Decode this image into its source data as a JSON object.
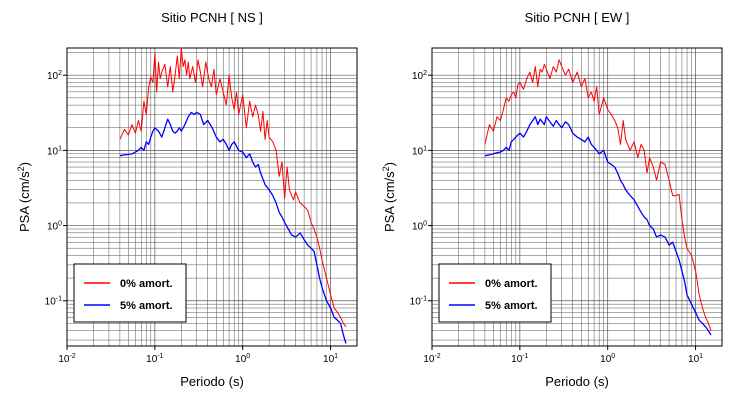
{
  "colors": {
    "zero_damping": "#ff0000",
    "five_damping": "#0000ff",
    "grid": "#555555"
  },
  "chart_data": [
    {
      "type": "line",
      "title": "Sitio PCNH [ NS ]",
      "xlabel": "Periodo (s)",
      "ylabel_main": "PSA (cm/s",
      "ylabel_sup": "2",
      "ylabel_tail": ")",
      "x_scale": "log",
      "y_scale": "log",
      "xlim": [
        0.01,
        20
      ],
      "ylim": [
        0.025,
        230
      ],
      "grid": true,
      "legend_position": "bottom-left",
      "x_ticks": [
        {
          "base": "10",
          "exp": "-2",
          "value": 0.01
        },
        {
          "base": "10",
          "exp": "-1",
          "value": 0.1
        },
        {
          "base": "10",
          "exp": "0",
          "value": 1
        },
        {
          "base": "10",
          "exp": "1",
          "value": 10
        }
      ],
      "y_ticks": [
        {
          "base": "10",
          "exp": "-1",
          "value": 0.1
        },
        {
          "base": "10",
          "exp": "0",
          "value": 1
        },
        {
          "base": "10",
          "exp": "1",
          "value": 10
        },
        {
          "base": "10",
          "exp": "2",
          "value": 100
        }
      ],
      "series": [
        {
          "name": "0% amort.",
          "color": "#ff0000",
          "x": [
            0.04,
            0.045,
            0.05,
            0.055,
            0.06,
            0.065,
            0.07,
            0.075,
            0.08,
            0.085,
            0.09,
            0.095,
            0.1,
            0.105,
            0.11,
            0.115,
            0.12,
            0.13,
            0.14,
            0.15,
            0.16,
            0.17,
            0.18,
            0.19,
            0.2,
            0.21,
            0.22,
            0.23,
            0.24,
            0.25,
            0.27,
            0.29,
            0.31,
            0.33,
            0.35,
            0.38,
            0.41,
            0.44,
            0.47,
            0.5,
            0.55,
            0.6,
            0.65,
            0.7,
            0.75,
            0.8,
            0.85,
            0.9,
            1.0,
            1.1,
            1.2,
            1.3,
            1.4,
            1.5,
            1.6,
            1.7,
            1.8,
            1.9,
            2.0,
            2.2,
            2.4,
            2.6,
            2.8,
            3.0,
            3.2,
            3.4,
            3.6,
            3.8,
            4.0,
            4.5,
            5.0,
            5.5,
            6.0,
            6.5,
            7.0,
            7.5,
            8.0,
            9.0,
            10.0,
            11.0,
            12.0,
            13.0,
            14.0,
            15.0
          ],
          "values": [
            14,
            19,
            16,
            22,
            17,
            25,
            18,
            45,
            30,
            70,
            95,
            80,
            200,
            60,
            150,
            90,
            110,
            140,
            70,
            130,
            60,
            100,
            180,
            90,
            230,
            130,
            160,
            100,
            150,
            90,
            130,
            80,
            160,
            110,
            70,
            150,
            90,
            70,
            120,
            55,
            90,
            60,
            40,
            100,
            50,
            35,
            60,
            30,
            55,
            20,
            45,
            28,
            40,
            30,
            18,
            33,
            14,
            25,
            15,
            13,
            10,
            4.5,
            7,
            2.3,
            6,
            3,
            2.5,
            2.2,
            2.8,
            2.0,
            1.8,
            1.6,
            1.1,
            0.9,
            0.7,
            0.5,
            0.35,
            0.2,
            0.12,
            0.08,
            0.07,
            0.06,
            0.05,
            0.045
          ]
        },
        {
          "name": "5% amort.",
          "color": "#0000ff",
          "x": [
            0.04,
            0.045,
            0.05,
            0.055,
            0.06,
            0.065,
            0.07,
            0.075,
            0.08,
            0.085,
            0.09,
            0.095,
            0.1,
            0.11,
            0.12,
            0.13,
            0.14,
            0.15,
            0.16,
            0.17,
            0.18,
            0.19,
            0.2,
            0.22,
            0.24,
            0.26,
            0.28,
            0.3,
            0.33,
            0.36,
            0.4,
            0.45,
            0.5,
            0.55,
            0.6,
            0.65,
            0.7,
            0.75,
            0.8,
            0.9,
            1.0,
            1.1,
            1.2,
            1.3,
            1.4,
            1.5,
            1.6,
            1.8,
            2.0,
            2.2,
            2.4,
            2.6,
            2.8,
            3.0,
            3.3,
            3.6,
            4.0,
            4.5,
            5.0,
            5.5,
            6.0,
            6.5,
            7.0,
            7.5,
            8.0,
            9.0,
            10.0,
            11.0,
            12.0,
            13.0,
            14.0,
            15.0
          ],
          "values": [
            8.5,
            8.7,
            8.8,
            9.0,
            9.5,
            10,
            11,
            10,
            13,
            12,
            15,
            18,
            20,
            18,
            15,
            20,
            26,
            22,
            18,
            17,
            18,
            20,
            18,
            22,
            28,
            32,
            30,
            32,
            30,
            22,
            25,
            20,
            15,
            13,
            14,
            12,
            10,
            12,
            13,
            10,
            9.5,
            8,
            9,
            7,
            6,
            6.5,
            5,
            3.5,
            3.0,
            2.5,
            2.0,
            1.5,
            1.3,
            1.1,
            0.9,
            0.75,
            0.7,
            0.8,
            0.65,
            0.55,
            0.5,
            0.45,
            0.3,
            0.2,
            0.15,
            0.1,
            0.08,
            0.06,
            0.055,
            0.05,
            0.035,
            0.027
          ]
        }
      ]
    },
    {
      "type": "line",
      "title": "Sitio PCNH [ EW ]",
      "xlabel": "Periodo (s)",
      "ylabel_main": "PSA (cm/s",
      "ylabel_sup": "2",
      "ylabel_tail": ")",
      "x_scale": "log",
      "y_scale": "log",
      "xlim": [
        0.01,
        20
      ],
      "ylim": [
        0.025,
        230
      ],
      "grid": true,
      "legend_position": "bottom-left",
      "x_ticks": [
        {
          "base": "10",
          "exp": "-2",
          "value": 0.01
        },
        {
          "base": "10",
          "exp": "-1",
          "value": 0.1
        },
        {
          "base": "10",
          "exp": "0",
          "value": 1
        },
        {
          "base": "10",
          "exp": "1",
          "value": 10
        }
      ],
      "y_ticks": [
        {
          "base": "10",
          "exp": "-1",
          "value": 0.1
        },
        {
          "base": "10",
          "exp": "0",
          "value": 1
        },
        {
          "base": "10",
          "exp": "1",
          "value": 10
        },
        {
          "base": "10",
          "exp": "2",
          "value": 100
        }
      ],
      "series": [
        {
          "name": "0% amort.",
          "color": "#ff0000",
          "x": [
            0.04,
            0.045,
            0.05,
            0.055,
            0.06,
            0.065,
            0.07,
            0.075,
            0.08,
            0.085,
            0.09,
            0.095,
            0.1,
            0.11,
            0.12,
            0.13,
            0.14,
            0.15,
            0.16,
            0.17,
            0.18,
            0.19,
            0.2,
            0.22,
            0.24,
            0.26,
            0.28,
            0.3,
            0.33,
            0.36,
            0.4,
            0.45,
            0.5,
            0.55,
            0.6,
            0.65,
            0.7,
            0.75,
            0.8,
            0.9,
            1.0,
            1.1,
            1.2,
            1.3,
            1.4,
            1.5,
            1.6,
            1.8,
            2.0,
            2.2,
            2.4,
            2.6,
            2.8,
            3.0,
            3.3,
            3.6,
            4.0,
            4.5,
            5.0,
            5.5,
            6.0,
            6.5,
            7.0,
            7.5,
            8.0,
            9.0,
            10.0,
            11.0,
            12.0,
            13.0,
            14.0,
            15.0
          ],
          "values": [
            12,
            22,
            18,
            28,
            25,
            35,
            50,
            45,
            55,
            60,
            50,
            75,
            80,
            65,
            90,
            110,
            80,
            130,
            70,
            120,
            110,
            140,
            120,
            90,
            130,
            110,
            160,
            130,
            100,
            120,
            80,
            110,
            70,
            90,
            50,
            60,
            45,
            70,
            30,
            50,
            35,
            30,
            25,
            20,
            12,
            25,
            14,
            10,
            13,
            8,
            12,
            10,
            5,
            8,
            6,
            4,
            7,
            6.5,
            4,
            2.5,
            2.5,
            2.6,
            1.2,
            0.7,
            0.5,
            0.4,
            0.25,
            0.12,
            0.08,
            0.06,
            0.05,
            0.04
          ]
        },
        {
          "name": "5% amort.",
          "color": "#0000ff",
          "x": [
            0.04,
            0.045,
            0.05,
            0.055,
            0.06,
            0.065,
            0.07,
            0.075,
            0.08,
            0.085,
            0.09,
            0.095,
            0.1,
            0.11,
            0.12,
            0.13,
            0.14,
            0.15,
            0.16,
            0.17,
            0.18,
            0.19,
            0.2,
            0.22,
            0.24,
            0.26,
            0.28,
            0.3,
            0.33,
            0.36,
            0.4,
            0.45,
            0.5,
            0.55,
            0.6,
            0.65,
            0.7,
            0.75,
            0.8,
            0.9,
            1.0,
            1.1,
            1.2,
            1.3,
            1.4,
            1.5,
            1.6,
            1.8,
            2.0,
            2.2,
            2.4,
            2.6,
            2.8,
            3.0,
            3.3,
            3.6,
            4.0,
            4.5,
            5.0,
            5.5,
            6.0,
            6.5,
            7.0,
            7.5,
            8.0,
            9.0,
            10.0,
            11.0,
            12.0,
            13.0,
            14.0,
            15.0
          ],
          "values": [
            8.5,
            8.7,
            9.0,
            9.3,
            9.5,
            10,
            11,
            10,
            13,
            14,
            15,
            16,
            17,
            15,
            18,
            22,
            25,
            28,
            22,
            26,
            24,
            22,
            28,
            24,
            21,
            25,
            22,
            20,
            24,
            22,
            17,
            15,
            14,
            13,
            15,
            12,
            11,
            10,
            9,
            10,
            7,
            6.5,
            6,
            5,
            4,
            3.5,
            3.0,
            2.5,
            2.2,
            1.8,
            1.5,
            1.3,
            1.2,
            1.0,
            0.9,
            0.7,
            0.75,
            0.7,
            0.55,
            0.6,
            0.45,
            0.35,
            0.25,
            0.18,
            0.12,
            0.09,
            0.07,
            0.055,
            0.05,
            0.045,
            0.04,
            0.035
          ]
        }
      ]
    }
  ]
}
